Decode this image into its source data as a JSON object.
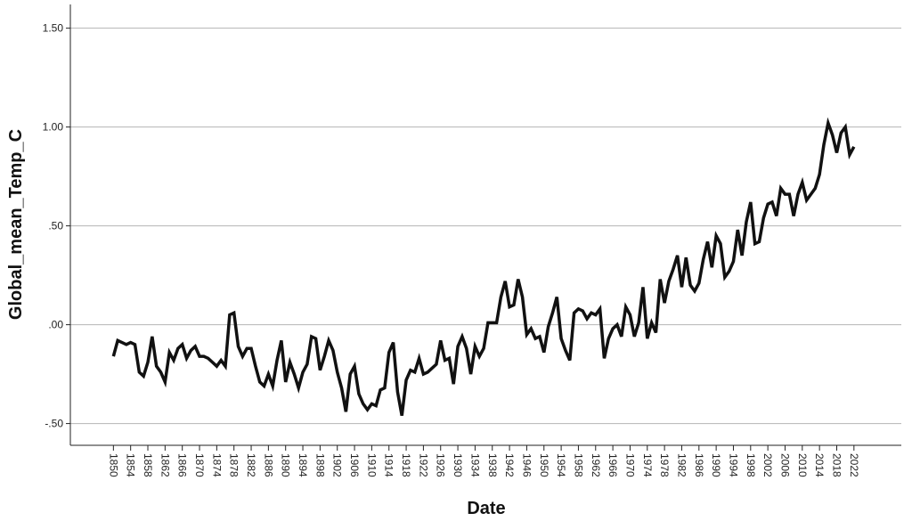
{
  "chart_data": {
    "type": "line",
    "x_label": "Date",
    "y_label": "Global_mean_Temp_C",
    "color": "#111111",
    "grid": true,
    "xlim": [
      1840,
      2033
    ],
    "ylim": [
      -0.61,
      1.62
    ],
    "xticks": [
      1850,
      1854,
      1858,
      1862,
      1866,
      1870,
      1874,
      1878,
      1882,
      1886,
      1890,
      1894,
      1898,
      1902,
      1906,
      1910,
      1914,
      1918,
      1922,
      1926,
      1930,
      1934,
      1938,
      1942,
      1946,
      1950,
      1954,
      1958,
      1962,
      1966,
      1970,
      1974,
      1978,
      1982,
      1986,
      1990,
      1994,
      1998,
      2002,
      2006,
      2010,
      2014,
      2018,
      2022
    ],
    "yticks": [
      {
        "value": 1.5,
        "label": "1.50"
      },
      {
        "value": 1.0,
        "label": "1.00"
      },
      {
        "value": 0.5,
        "label": ".50"
      },
      {
        "value": 0,
        "label": ".00"
      },
      {
        "value": -0.5,
        "label": "-.50"
      }
    ],
    "x": [
      1850,
      1851,
      1852,
      1853,
      1854,
      1855,
      1856,
      1857,
      1858,
      1859,
      1860,
      1861,
      1862,
      1863,
      1864,
      1865,
      1866,
      1867,
      1868,
      1869,
      1870,
      1871,
      1872,
      1873,
      1874,
      1875,
      1876,
      1877,
      1878,
      1879,
      1880,
      1881,
      1882,
      1883,
      1884,
      1885,
      1886,
      1887,
      1888,
      1889,
      1890,
      1891,
      1892,
      1893,
      1894,
      1895,
      1896,
      1897,
      1898,
      1899,
      1900,
      1901,
      1902,
      1903,
      1904,
      1905,
      1906,
      1907,
      1908,
      1909,
      1910,
      1911,
      1912,
      1913,
      1914,
      1915,
      1916,
      1917,
      1918,
      1919,
      1920,
      1921,
      1922,
      1923,
      1924,
      1925,
      1926,
      1927,
      1928,
      1929,
      1930,
      1931,
      1932,
      1933,
      1934,
      1935,
      1936,
      1937,
      1938,
      1939,
      1940,
      1941,
      1942,
      1943,
      1944,
      1945,
      1946,
      1947,
      1948,
      1949,
      1950,
      1951,
      1952,
      1953,
      1954,
      1955,
      1956,
      1957,
      1958,
      1959,
      1960,
      1961,
      1962,
      1963,
      1964,
      1965,
      1966,
      1967,
      1968,
      1969,
      1970,
      1971,
      1972,
      1973,
      1974,
      1975,
      1976,
      1977,
      1978,
      1979,
      1980,
      1981,
      1982,
      1983,
      1984,
      1985,
      1986,
      1987,
      1988,
      1989,
      1990,
      1991,
      1992,
      1993,
      1994,
      1995,
      1996,
      1997,
      1998,
      1999,
      2000,
      2001,
      2002,
      2003,
      2004,
      2005,
      2006,
      2007,
      2008,
      2009,
      2010,
      2011,
      2012,
      2013,
      2014,
      2015,
      2016,
      2017,
      2018,
      2019,
      2020,
      2021,
      2022
    ],
    "values": [
      -0.16,
      -0.08,
      -0.09,
      -0.1,
      -0.09,
      -0.1,
      -0.24,
      -0.26,
      -0.19,
      -0.06,
      -0.21,
      -0.24,
      -0.29,
      -0.14,
      -0.18,
      -0.12,
      -0.1,
      -0.17,
      -0.13,
      -0.11,
      -0.16,
      -0.16,
      -0.17,
      -0.19,
      -0.21,
      -0.18,
      -0.21,
      0.05,
      0.06,
      -0.11,
      -0.16,
      -0.12,
      -0.12,
      -0.21,
      -0.29,
      -0.31,
      -0.25,
      -0.31,
      -0.18,
      -0.08,
      -0.29,
      -0.19,
      -0.25,
      -0.32,
      -0.24,
      -0.2,
      -0.06,
      -0.07,
      -0.23,
      -0.16,
      -0.08,
      -0.13,
      -0.24,
      -0.32,
      -0.44,
      -0.25,
      -0.21,
      -0.35,
      -0.4,
      -0.43,
      -0.4,
      -0.41,
      -0.33,
      -0.32,
      -0.14,
      -0.09,
      -0.34,
      -0.46,
      -0.28,
      -0.23,
      -0.24,
      -0.17,
      -0.25,
      -0.24,
      -0.22,
      -0.2,
      -0.08,
      -0.18,
      -0.17,
      -0.3,
      -0.11,
      -0.06,
      -0.12,
      -0.25,
      -0.11,
      -0.16,
      -0.12,
      0.01,
      0.01,
      0.01,
      0.14,
      0.22,
      0.09,
      0.1,
      0.23,
      0.14,
      -0.05,
      -0.02,
      -0.07,
      -0.06,
      -0.14,
      -0.01,
      0.06,
      0.14,
      -0.07,
      -0.13,
      -0.18,
      0.06,
      0.08,
      0.07,
      0.03,
      0.06,
      0.05,
      0.08,
      -0.17,
      -0.07,
      -0.02,
      0.0,
      -0.06,
      0.09,
      0.05,
      -0.06,
      0.01,
      0.19,
      -0.07,
      0.01,
      -0.04,
      0.23,
      0.11,
      0.22,
      0.28,
      0.35,
      0.19,
      0.34,
      0.2,
      0.17,
      0.21,
      0.33,
      0.42,
      0.29,
      0.45,
      0.41,
      0.24,
      0.27,
      0.32,
      0.48,
      0.35,
      0.52,
      0.62,
      0.41,
      0.42,
      0.54,
      0.61,
      0.62,
      0.55,
      0.69,
      0.66,
      0.66,
      0.55,
      0.66,
      0.72,
      0.63,
      0.66,
      0.69,
      0.76,
      0.91,
      1.02,
      0.96,
      0.87,
      0.97,
      1.0,
      0.86,
      0.9
    ]
  }
}
